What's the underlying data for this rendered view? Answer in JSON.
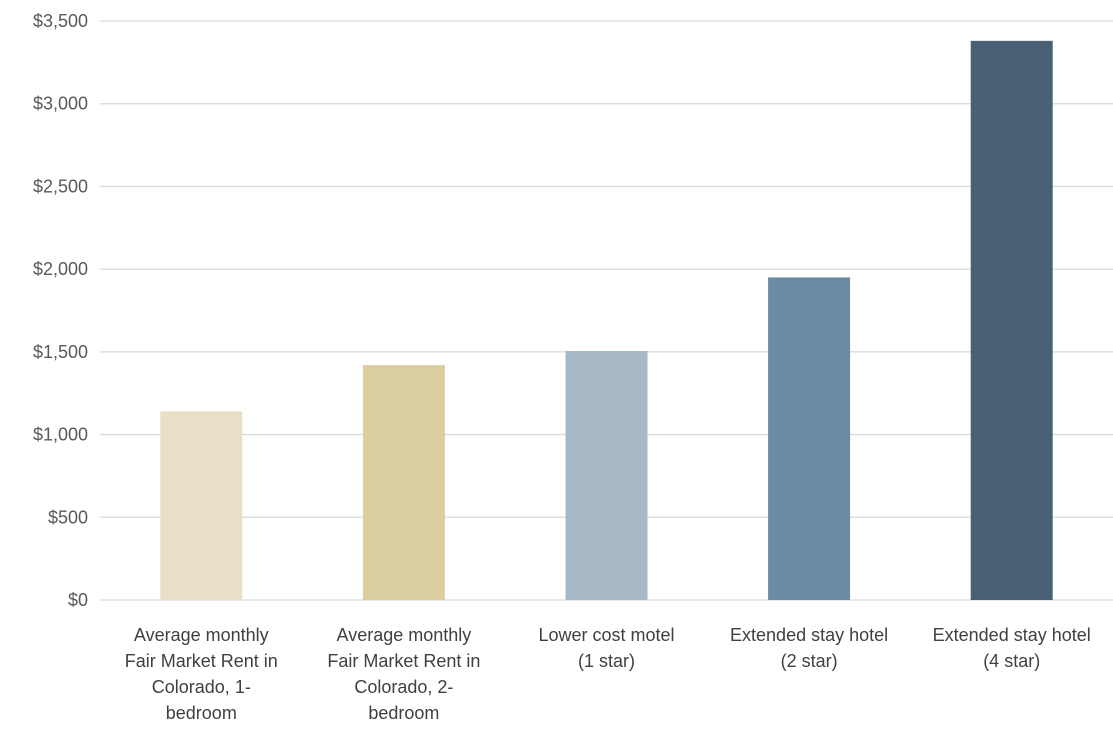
{
  "chart_data": {
    "type": "bar",
    "title": "",
    "xlabel": "",
    "ylabel": "",
    "ylim": [
      0,
      3500
    ],
    "y_ticks": [
      0,
      500,
      1000,
      1500,
      2000,
      2500,
      3000,
      3500
    ],
    "y_tick_labels": [
      "$0",
      "$500",
      "$1,000",
      "$1,500",
      "$2,000",
      "$2,500",
      "$3,000",
      "$3,500"
    ],
    "grid": true,
    "legend": "none",
    "categories": [
      "Average monthly Fair Market Rent in Colorado, 1-bedroom",
      "Average monthly Fair Market Rent in Colorado, 2-bedroom",
      "Lower cost motel (1 star)",
      "Extended stay hotel (2 star)",
      "Extended stay hotel (4 star)"
    ],
    "category_label_lines": [
      [
        "Average monthly",
        "Fair Market Rent in",
        "Colorado, 1-",
        "bedroom"
      ],
      [
        "Average monthly",
        "Fair Market Rent in",
        "Colorado, 2-",
        "bedroom"
      ],
      [
        "Lower cost motel",
        "(1 star)"
      ],
      [
        "Extended stay hotel",
        "(2 star)"
      ],
      [
        "Extended stay hotel",
        "(4 star)"
      ]
    ],
    "values": [
      1140,
      1420,
      1505,
      1950,
      3380
    ],
    "colors": [
      "#e8e0c6",
      "#dbcea0",
      "#a7b8c7",
      "#6a8ba2",
      "#4a6075"
    ]
  }
}
